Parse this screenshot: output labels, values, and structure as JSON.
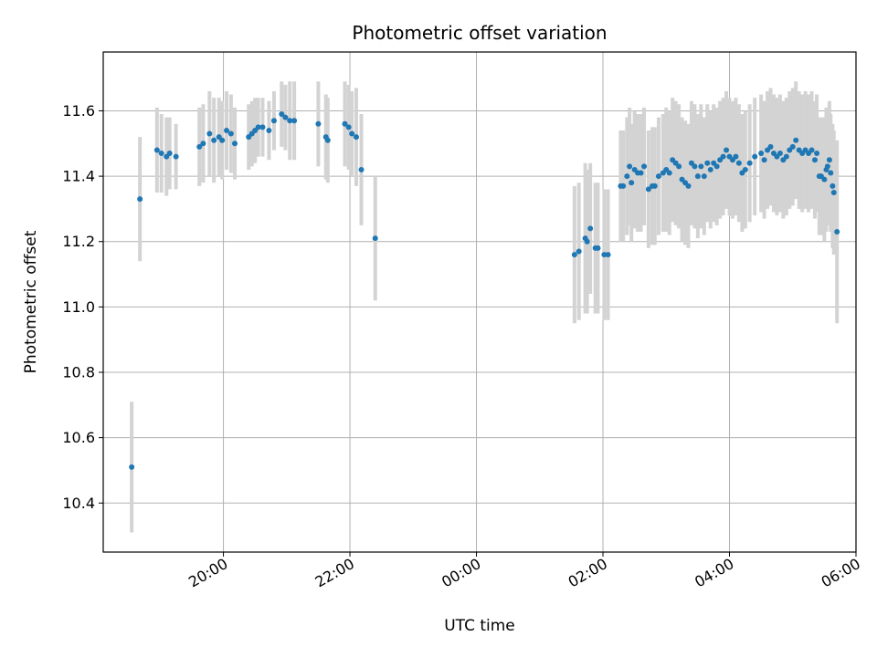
{
  "chart_data": {
    "type": "scatter",
    "title": "Photometric offset variation",
    "xlabel": "UTC time",
    "ylabel": "Photometric offset",
    "x_unit": "hours (UTC, 24 = 00:00 next day)",
    "xlim": [
      18.1,
      30.0
    ],
    "ylim": [
      10.25,
      11.78
    ],
    "grid": true,
    "x_ticks": [
      {
        "value": 20,
        "label": "20:00"
      },
      {
        "value": 22,
        "label": "22:00"
      },
      {
        "value": 24,
        "label": "00:00"
      },
      {
        "value": 26,
        "label": "02:00"
      },
      {
        "value": 28,
        "label": "04:00"
      },
      {
        "value": 30,
        "label": "06:00"
      }
    ],
    "y_ticks": [
      10.4,
      10.6,
      10.8,
      11.0,
      11.2,
      11.4,
      11.6
    ],
    "marker_color": "#1f77b4",
    "errorbar_color": "#d3d3d3",
    "series": [
      {
        "points": [
          [
            18.55,
            10.51,
            0.2
          ],
          [
            18.68,
            11.33,
            0.19
          ],
          [
            18.95,
            11.48,
            0.13
          ],
          [
            19.02,
            11.47,
            0.12
          ],
          [
            19.1,
            11.46,
            0.12
          ],
          [
            19.15,
            11.47,
            0.11
          ],
          [
            19.25,
            11.46,
            0.1
          ],
          [
            19.62,
            11.49,
            0.12
          ],
          [
            19.68,
            11.5,
            0.12
          ],
          [
            19.78,
            11.53,
            0.13
          ],
          [
            19.85,
            11.51,
            0.13
          ],
          [
            19.93,
            11.52,
            0.12
          ],
          [
            19.98,
            11.51,
            0.12
          ],
          [
            20.05,
            11.54,
            0.12
          ],
          [
            20.12,
            11.53,
            0.12
          ],
          [
            20.18,
            11.5,
            0.11
          ],
          [
            20.4,
            11.52,
            0.1
          ],
          [
            20.45,
            11.53,
            0.1
          ],
          [
            20.5,
            11.54,
            0.1
          ],
          [
            20.55,
            11.55,
            0.09
          ],
          [
            20.62,
            11.55,
            0.09
          ],
          [
            20.72,
            11.54,
            0.09
          ],
          [
            20.8,
            11.57,
            0.09
          ],
          [
            20.92,
            11.59,
            0.1
          ],
          [
            20.98,
            11.58,
            0.1
          ],
          [
            21.05,
            11.57,
            0.12
          ],
          [
            21.12,
            11.57,
            0.12
          ],
          [
            21.5,
            11.56,
            0.13
          ],
          [
            21.62,
            11.52,
            0.13
          ],
          [
            21.65,
            11.51,
            0.13
          ],
          [
            21.92,
            11.56,
            0.13
          ],
          [
            21.98,
            11.55,
            0.13
          ],
          [
            22.03,
            11.53,
            0.13
          ],
          [
            22.1,
            11.52,
            0.15
          ],
          [
            22.18,
            11.42,
            0.17
          ],
          [
            22.4,
            11.21,
            0.19
          ],
          [
            25.55,
            11.16,
            0.21
          ],
          [
            25.62,
            11.17,
            0.21
          ],
          [
            25.72,
            11.21,
            0.23
          ],
          [
            25.75,
            11.2,
            0.22
          ],
          [
            25.8,
            11.24,
            0.2
          ],
          [
            25.88,
            11.18,
            0.2
          ],
          [
            25.92,
            11.18,
            0.2
          ],
          [
            26.02,
            11.16,
            0.2
          ],
          [
            26.08,
            11.16,
            0.2
          ],
          [
            26.28,
            11.37,
            0.17
          ],
          [
            26.32,
            11.37,
            0.17
          ],
          [
            26.38,
            11.4,
            0.18
          ],
          [
            26.42,
            11.43,
            0.18
          ],
          [
            26.45,
            11.38,
            0.18
          ],
          [
            26.5,
            11.42,
            0.18
          ],
          [
            26.55,
            11.41,
            0.18
          ],
          [
            26.6,
            11.41,
            0.18
          ],
          [
            26.65,
            11.43,
            0.18
          ],
          [
            26.72,
            11.36,
            0.18
          ],
          [
            26.78,
            11.37,
            0.18
          ],
          [
            26.82,
            11.37,
            0.18
          ],
          [
            26.88,
            11.4,
            0.18
          ],
          [
            26.95,
            11.41,
            0.18
          ],
          [
            27.0,
            11.42,
            0.19
          ],
          [
            27.05,
            11.41,
            0.19
          ],
          [
            27.1,
            11.45,
            0.19
          ],
          [
            27.15,
            11.44,
            0.19
          ],
          [
            27.2,
            11.43,
            0.19
          ],
          [
            27.25,
            11.39,
            0.19
          ],
          [
            27.3,
            11.38,
            0.19
          ],
          [
            27.35,
            11.37,
            0.19
          ],
          [
            27.4,
            11.44,
            0.19
          ],
          [
            27.45,
            11.43,
            0.19
          ],
          [
            27.5,
            11.4,
            0.19
          ],
          [
            27.55,
            11.43,
            0.19
          ],
          [
            27.6,
            11.4,
            0.18
          ],
          [
            27.65,
            11.44,
            0.18
          ],
          [
            27.7,
            11.42,
            0.18
          ],
          [
            27.75,
            11.44,
            0.18
          ],
          [
            27.8,
            11.43,
            0.18
          ],
          [
            27.85,
            11.45,
            0.18
          ],
          [
            27.9,
            11.46,
            0.18
          ],
          [
            27.95,
            11.48,
            0.18
          ],
          [
            28.0,
            11.46,
            0.18
          ],
          [
            28.05,
            11.45,
            0.18
          ],
          [
            28.1,
            11.46,
            0.18
          ],
          [
            28.15,
            11.44,
            0.18
          ],
          [
            28.2,
            11.41,
            0.18
          ],
          [
            28.25,
            11.42,
            0.18
          ],
          [
            28.32,
            11.44,
            0.18
          ],
          [
            28.4,
            11.46,
            0.18
          ],
          [
            28.5,
            11.47,
            0.18
          ],
          [
            28.55,
            11.45,
            0.18
          ],
          [
            28.6,
            11.48,
            0.18
          ],
          [
            28.65,
            11.49,
            0.18
          ],
          [
            28.7,
            11.47,
            0.18
          ],
          [
            28.75,
            11.46,
            0.18
          ],
          [
            28.8,
            11.47,
            0.18
          ],
          [
            28.85,
            11.45,
            0.18
          ],
          [
            28.9,
            11.46,
            0.18
          ],
          [
            28.95,
            11.48,
            0.18
          ],
          [
            29.0,
            11.49,
            0.18
          ],
          [
            29.05,
            11.51,
            0.18
          ],
          [
            29.1,
            11.48,
            0.18
          ],
          [
            29.15,
            11.47,
            0.18
          ],
          [
            29.2,
            11.48,
            0.18
          ],
          [
            29.25,
            11.47,
            0.18
          ],
          [
            29.3,
            11.48,
            0.18
          ],
          [
            29.35,
            11.45,
            0.18
          ],
          [
            29.38,
            11.47,
            0.18
          ],
          [
            29.42,
            11.4,
            0.18
          ],
          [
            29.45,
            11.4,
            0.18
          ],
          [
            29.5,
            11.39,
            0.19
          ],
          [
            29.53,
            11.42,
            0.19
          ],
          [
            29.55,
            11.43,
            0.18
          ],
          [
            29.58,
            11.45,
            0.18
          ],
          [
            29.6,
            11.41,
            0.18
          ],
          [
            29.63,
            11.37,
            0.19
          ],
          [
            29.65,
            11.35,
            0.19
          ],
          [
            29.7,
            11.23,
            0.28
          ]
        ]
      }
    ]
  }
}
